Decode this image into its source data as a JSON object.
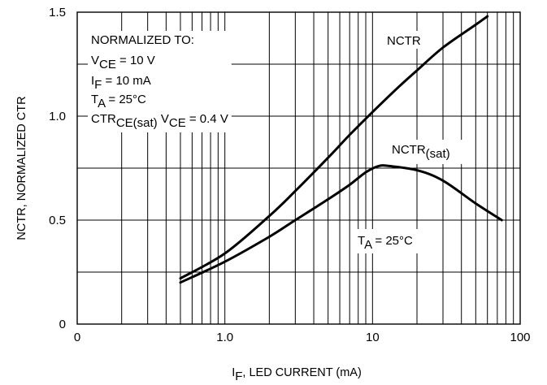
{
  "chart_data": {
    "type": "line",
    "x_scale": "log",
    "xlim": [
      0.1,
      100
    ],
    "ylim": [
      0,
      1.5
    ],
    "grid": true,
    "x_ticks": [
      {
        "value": 0.1,
        "label": "0"
      },
      {
        "value": 1,
        "label": "1.0"
      },
      {
        "value": 10,
        "label": "10"
      },
      {
        "value": 100,
        "label": "100"
      }
    ],
    "y_ticks": [
      {
        "value": 0,
        "label": "0"
      },
      {
        "value": 0.5,
        "label": "0.5"
      },
      {
        "value": 1.0,
        "label": "1.0"
      },
      {
        "value": 1.5,
        "label": "1.5"
      }
    ],
    "xlabel": {
      "main": "I",
      "sub": "F",
      "rest": ", LED CURRENT (mA)"
    },
    "ylabel": "NCTR, NORMALIZED CTR",
    "series": [
      {
        "name": "NCTR",
        "color": "#000000",
        "x": [
          0.5,
          1,
          2,
          3,
          5,
          7,
          10,
          15,
          20,
          30,
          50,
          60
        ],
        "y": [
          0.22,
          0.34,
          0.52,
          0.64,
          0.8,
          0.91,
          1.02,
          1.14,
          1.22,
          1.33,
          1.44,
          1.48
        ]
      },
      {
        "name": "NCTR(sat)",
        "color": "#000000",
        "x": [
          0.5,
          1,
          2,
          3,
          5,
          7,
          9,
          11,
          13,
          20,
          30,
          50,
          75
        ],
        "y": [
          0.2,
          0.3,
          0.42,
          0.5,
          0.6,
          0.67,
          0.73,
          0.76,
          0.76,
          0.74,
          0.69,
          0.58,
          0.5
        ]
      }
    ],
    "series_labels": [
      {
        "main": "NCTR",
        "sub": ""
      },
      {
        "main": "NCTR",
        "sub": "(sat)"
      }
    ],
    "temperature_label": {
      "main": "T",
      "sub": "A",
      "rest": " = 25°C"
    },
    "normalized_box": {
      "title": "NORMALIZED TO:",
      "lines": [
        {
          "main": "V",
          "sub": "CE",
          "rest": " = 10 V"
        },
        {
          "main": "I",
          "sub": "F",
          "rest": " = 10 mA"
        },
        {
          "main": "T",
          "sub": "A",
          "rest": " = 25°C"
        },
        {
          "main": "CTR",
          "sub": "CE(sat)",
          "rest": " V",
          "sub2": "CE",
          "rest2": " = 0.4 V"
        }
      ]
    }
  }
}
